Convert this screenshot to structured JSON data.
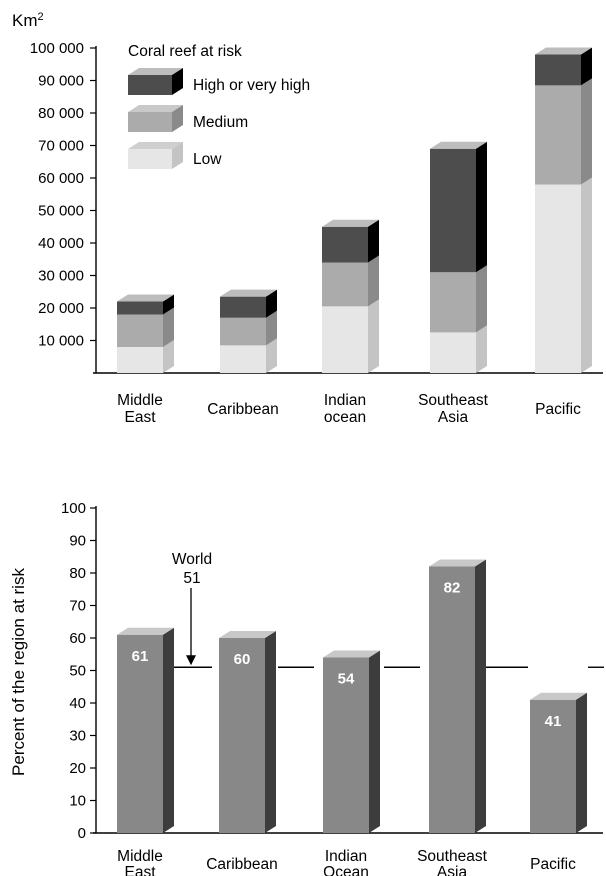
{
  "chart_data": [
    {
      "type": "bar",
      "stacked": true,
      "unit_label": "Km",
      "unit_superscript": "2",
      "legend_title": "Coral reef at risk",
      "legend_position": "top-left",
      "categories": [
        [
          "Middle",
          "East"
        ],
        [
          "Caribbean"
        ],
        [
          "Indian",
          "ocean"
        ],
        [
          "Southeast",
          "Asia"
        ],
        [
          "Pacific"
        ]
      ],
      "series": [
        {
          "name": "Low",
          "color": "#e6e6e6",
          "side": "#c4c4c4",
          "top": "#cfcfcf",
          "values": [
            8000,
            8500,
            20500,
            12500,
            58000
          ]
        },
        {
          "name": "Medium",
          "color": "#ababab",
          "side": "#8a8a8a",
          "top": "#c9c9c9",
          "values": [
            10000,
            8500,
            13500,
            18500,
            30500
          ]
        },
        {
          "name": "High or very high",
          "color": "#4d4d4d",
          "side": "#000000",
          "top": "#bdbdbd",
          "values": [
            4000,
            6500,
            11000,
            38000,
            9500
          ]
        }
      ],
      "legend_order": [
        2,
        1,
        0
      ],
      "yticks": [
        "100 000",
        "90 000",
        "80 000",
        "70 000",
        "60 000",
        "50 000",
        "40 000",
        "30 000",
        "20 000",
        "10 000"
      ],
      "ylim": [
        0,
        100000
      ],
      "grid": false
    },
    {
      "type": "bar",
      "ylabel": "Percent of the region at risk",
      "categories": [
        [
          "Middle",
          "East"
        ],
        [
          "Caribbean"
        ],
        [
          "Indian",
          "Ocean"
        ],
        [
          "Southeast",
          "Asia"
        ],
        [
          "Pacific"
        ]
      ],
      "values": [
        61,
        60,
        54,
        82,
        41
      ],
      "value_labels": [
        "61",
        "60",
        "54",
        "82",
        "41"
      ],
      "bar_color": "#888888",
      "side_color": "#3d3d3d",
      "top_color": "#c8c8c8",
      "reference": {
        "label_line1": "World",
        "label_line2": "51",
        "value": 51
      },
      "yticks": [
        "100",
        "90",
        "80",
        "70",
        "60",
        "50",
        "40",
        "30",
        "20",
        "10",
        "0"
      ],
      "ylim": [
        0,
        100
      ],
      "grid": false
    }
  ]
}
